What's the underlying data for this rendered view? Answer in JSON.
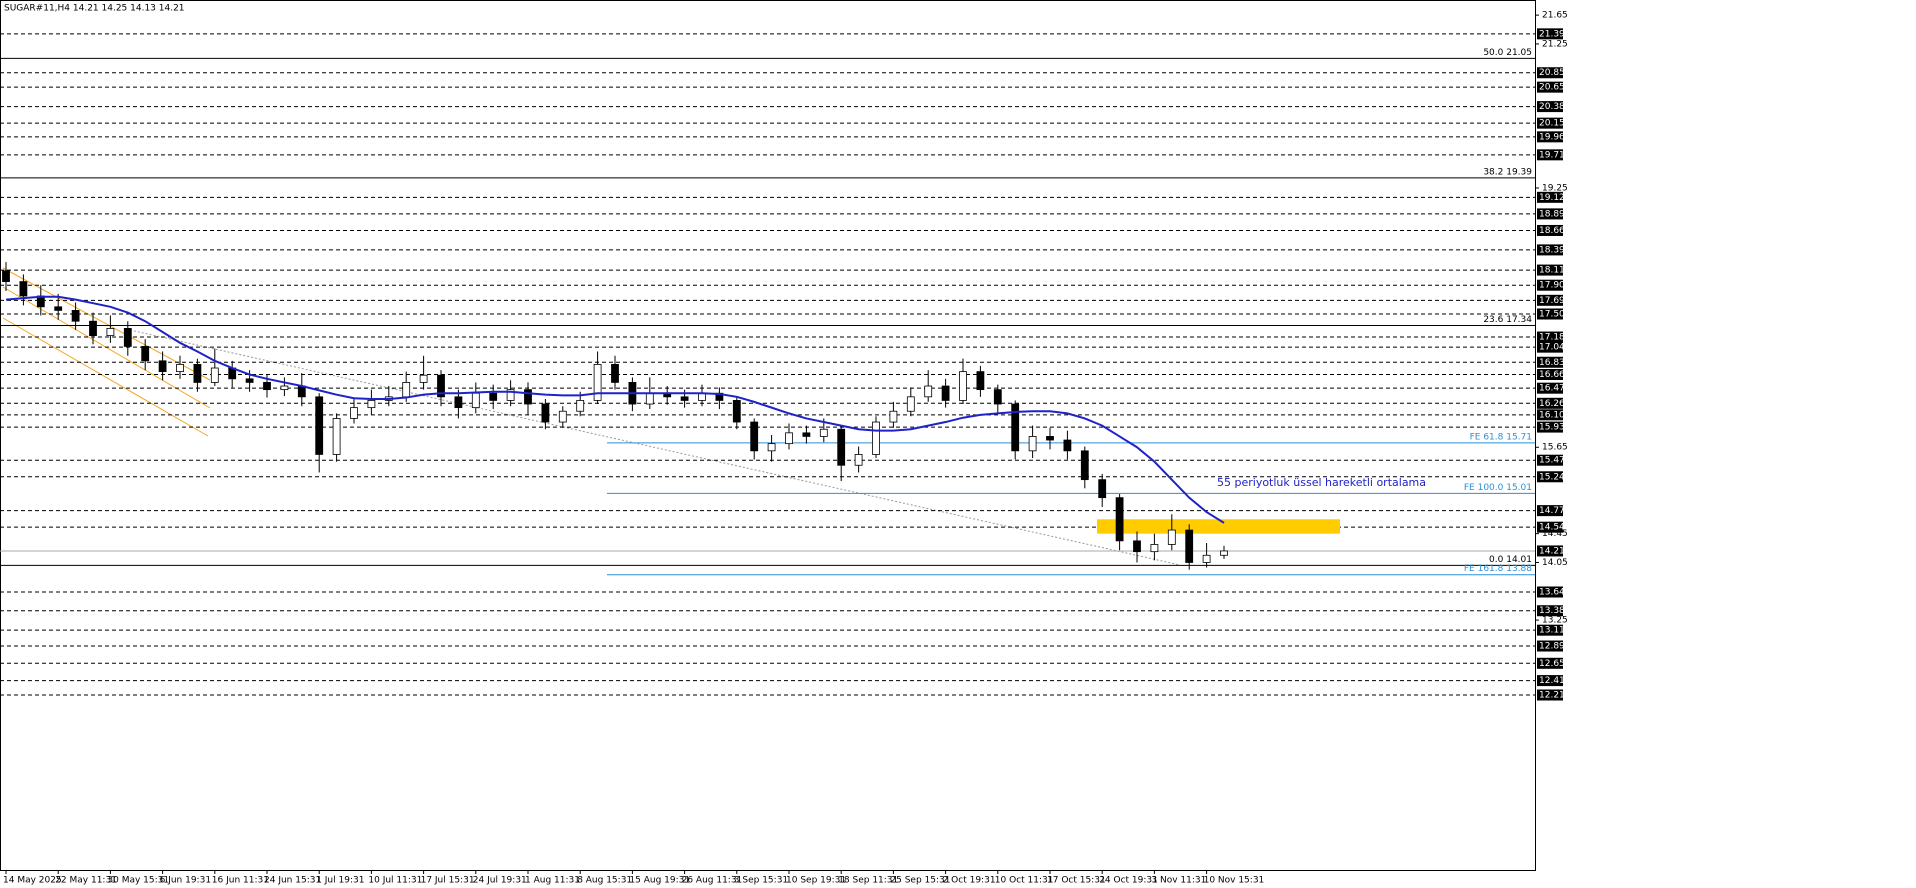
{
  "chart_data": {
    "type": "candlestick",
    "title": "SUGAR#11,H4  14.21 14.25 14.13 14.21",
    "categories": [
      "14 May 2025",
      null,
      null,
      "22 May 11:31",
      null,
      null,
      "30 May 15:31",
      null,
      null,
      "6 Jun 19:31",
      null,
      null,
      "16 Jun 11:31",
      null,
      null,
      "24 Jun 15:31",
      null,
      null,
      "1 Jul 19:31",
      null,
      null,
      "10 Jul 11:31",
      null,
      null,
      "17 Jul 15:31",
      null,
      null,
      "24 Jul 19:31",
      null,
      null,
      "1 Aug 11:31",
      null,
      null,
      "8 Aug 15:31",
      null,
      null,
      "15 Aug 19:31",
      null,
      null,
      "26 Aug 11:31",
      null,
      null,
      "3 Sep 15:31",
      null,
      null,
      "10 Sep 19:31",
      null,
      null,
      "18 Sep 11:31",
      null,
      null,
      "25 Sep 15:31",
      null,
      null,
      "2 Oct 19:31",
      null,
      null,
      "10 Oct 11:31",
      null,
      null,
      "17 Oct 15:31",
      null,
      null,
      "24 Oct 19:31",
      null,
      null,
      "3 Nov 11:31",
      null,
      null,
      "10 Nov 15:31",
      null
    ],
    "open": [
      18.1,
      17.95,
      17.75,
      17.6,
      17.55,
      17.4,
      17.2,
      17.3,
      17.05,
      16.85,
      16.7,
      16.8,
      16.55,
      16.75,
      16.6,
      16.55,
      16.45,
      16.5,
      16.35,
      15.55,
      16.05,
      16.2,
      16.3,
      16.35,
      16.55,
      16.65,
      16.35,
      16.2,
      16.4,
      16.3,
      16.45,
      16.25,
      16.0,
      16.15,
      16.3,
      16.8,
      16.55,
      16.25,
      16.4,
      16.35,
      16.3,
      16.4,
      16.3,
      16.0,
      15.6,
      15.7,
      15.85,
      15.8,
      15.9,
      15.4,
      15.55,
      16.0,
      16.15,
      16.35,
      16.5,
      16.3,
      16.7,
      16.45,
      16.25,
      15.6,
      15.8,
      15.75,
      15.6,
      15.2,
      14.95,
      14.35,
      14.2,
      14.3,
      14.5,
      14.05,
      14.15
    ],
    "high": [
      18.22,
      18.05,
      17.9,
      17.78,
      17.66,
      17.52,
      17.48,
      17.4,
      17.15,
      16.98,
      16.92,
      16.88,
      17.02,
      16.85,
      16.72,
      16.66,
      16.62,
      16.68,
      16.4,
      16.12,
      16.32,
      16.45,
      16.5,
      16.7,
      16.92,
      16.72,
      16.45,
      16.55,
      16.52,
      16.58,
      16.55,
      16.32,
      16.22,
      16.42,
      16.98,
      16.92,
      16.62,
      16.62,
      16.5,
      16.45,
      16.52,
      16.48,
      16.36,
      16.05,
      15.82,
      15.98,
      15.95,
      16.05,
      15.95,
      15.66,
      16.08,
      16.28,
      16.48,
      16.72,
      16.6,
      16.88,
      16.78,
      16.52,
      16.3,
      15.95,
      15.92,
      15.88,
      15.66,
      15.28,
      15.0,
      14.48,
      14.45,
      14.72,
      14.58,
      14.32,
      14.28
    ],
    "low": [
      17.82,
      17.62,
      17.48,
      17.42,
      17.28,
      17.08,
      17.1,
      16.92,
      16.72,
      16.58,
      16.6,
      16.42,
      16.5,
      16.48,
      16.42,
      16.34,
      16.36,
      16.22,
      15.3,
      15.45,
      15.98,
      16.1,
      16.22,
      16.28,
      16.45,
      16.22,
      16.05,
      16.12,
      16.18,
      16.22,
      16.1,
      15.9,
      15.92,
      16.08,
      16.25,
      16.45,
      16.15,
      16.18,
      16.24,
      16.2,
      16.22,
      16.18,
      15.9,
      15.48,
      15.45,
      15.62,
      15.7,
      15.72,
      15.18,
      15.3,
      15.5,
      15.92,
      16.08,
      16.28,
      16.2,
      16.25,
      16.35,
      16.12,
      15.48,
      15.5,
      15.62,
      15.48,
      15.08,
      14.82,
      14.22,
      14.05,
      14.08,
      14.22,
      13.95,
      13.98,
      14.1
    ],
    "close": [
      17.95,
      17.75,
      17.6,
      17.55,
      17.4,
      17.2,
      17.3,
      17.05,
      16.85,
      16.7,
      16.8,
      16.55,
      16.75,
      16.6,
      16.55,
      16.45,
      16.5,
      16.35,
      15.55,
      16.05,
      16.2,
      16.3,
      16.35,
      16.55,
      16.65,
      16.35,
      16.2,
      16.4,
      16.3,
      16.45,
      16.25,
      16.0,
      16.15,
      16.3,
      16.8,
      16.55,
      16.25,
      16.4,
      16.35,
      16.3,
      16.4,
      16.3,
      16.0,
      15.6,
      15.7,
      15.85,
      15.8,
      15.9,
      15.4,
      15.55,
      16.0,
      16.15,
      16.35,
      16.5,
      16.3,
      16.7,
      16.45,
      16.25,
      15.6,
      15.8,
      15.75,
      15.6,
      15.2,
      14.95,
      14.35,
      14.2,
      14.3,
      14.5,
      14.05,
      14.15,
      14.21
    ],
    "up_color": "#ffffff",
    "down_color": "#000000",
    "ema": {
      "color": "#1e22c8",
      "values": [
        17.7,
        17.72,
        17.74,
        17.74,
        17.7,
        17.65,
        17.6,
        17.52,
        17.4,
        17.25,
        17.1,
        16.98,
        16.85,
        16.75,
        16.66,
        16.6,
        16.55,
        16.5,
        16.44,
        16.38,
        16.33,
        16.32,
        16.32,
        16.34,
        16.38,
        16.4,
        16.4,
        16.41,
        16.42,
        16.42,
        16.4,
        16.38,
        16.37,
        16.37,
        16.4,
        16.4,
        16.4,
        16.4,
        16.4,
        16.4,
        16.4,
        16.39,
        16.35,
        16.28,
        16.2,
        16.12,
        16.05,
        16.0,
        15.95,
        15.9,
        15.88,
        15.88,
        15.9,
        15.95,
        16.0,
        16.06,
        16.1,
        16.12,
        16.14,
        16.15,
        16.15,
        16.12,
        16.05,
        15.95,
        15.8,
        15.65,
        15.45,
        15.2,
        14.95,
        14.75,
        14.6
      ]
    },
    "annotation": "55 periyotluk üssel hareketli ortalama",
    "ylim": [
      9.78,
      21.86
    ],
    "yticks": [
      21.65,
      21.25,
      19.25,
      15.65,
      14.45,
      14.05,
      13.25
    ],
    "levels": [
      21.39,
      20.85,
      20.65,
      20.38,
      20.15,
      19.96,
      19.71,
      19.12,
      18.89,
      18.66,
      18.39,
      18.11,
      {
        "value": 17.9,
        "label": "17.90"
      },
      17.69,
      {
        "value": 17.5,
        "label": "17.50"
      },
      17.18,
      17.04,
      16.83,
      16.66,
      16.47,
      16.26,
      {
        "value": 16.1,
        "label": "16.10"
      },
      15.93,
      15.47,
      15.24,
      14.77,
      14.54,
      13.64,
      13.38,
      13.11,
      12.89,
      12.65,
      12.41,
      12.21
    ],
    "current_price": 14.21,
    "fib": [
      {
        "value": 21.05,
        "label": "50.0 21.05"
      },
      {
        "value": 19.39,
        "label": "38.2 19.39"
      },
      {
        "value": 17.34,
        "label": "23.6 17.34"
      },
      {
        "value": 14.01,
        "label": "0.0 14.01"
      }
    ],
    "fe": [
      {
        "value": 15.71,
        "label": "FE 61.8 15.71"
      },
      {
        "value": 15.01,
        "label": "FE 100.0 15.01"
      },
      {
        "value": 13.88,
        "label": "FE 161.8 13.88"
      }
    ],
    "fe_color": "#2a8fd8",
    "zone": [
      14.45,
      14.65
    ],
    "zone_color": "#ffcc00"
  }
}
